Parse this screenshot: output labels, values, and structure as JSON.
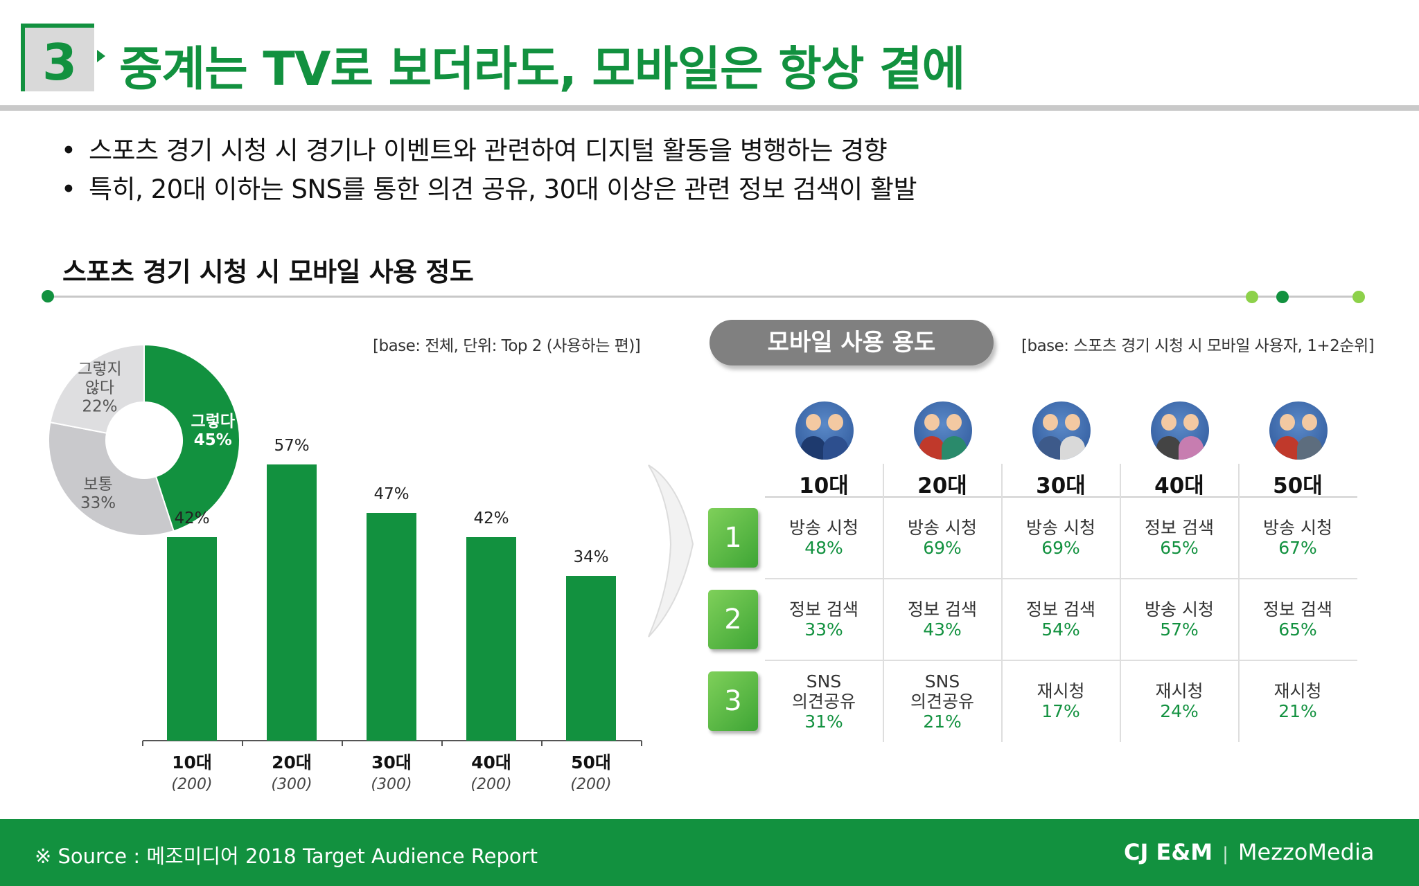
{
  "header": {
    "number": "3",
    "title": "중계는 TV로 보더라도, 모바일은 항상 곁에"
  },
  "bullets": [
    "스포츠 경기 시청 시 경기나 이벤트와 관련하여 디지털 활동을 병행하는 경향",
    "특히, 20대 이하는 SNS를 통한 의견 공유, 30대 이상은 관련 정보 검색이 활발"
  ],
  "section_title": "스포츠 경기 시청 시 모바일 사용 정도",
  "left_base_note": "[base: 전체, 단위: Top 2 (사용하는 편)]",
  "right_pill": "모바일 사용 용도",
  "right_base_note": "[base: 스포츠 경기 시청 시 모바일 사용자, 1+2순위]",
  "colors": {
    "green": "#12913f",
    "gray": "#c8c8c8",
    "light_gray": "#dedede",
    "lime": "#8dd14a"
  },
  "chart_data": [
    {
      "type": "pie",
      "slices": [
        {
          "label": "그렇다",
          "value": 45,
          "color": "#12913f"
        },
        {
          "label": "보통",
          "value": 33,
          "color": "#c9c9cc"
        },
        {
          "label": "그렇지 않다",
          "value": 22,
          "color": "#dedee0"
        }
      ],
      "slice_text": [
        {
          "label_lines": [
            "그렇다"
          ],
          "pct": "45%"
        },
        {
          "label_lines": [
            "보통"
          ],
          "pct": "33%"
        },
        {
          "label_lines": [
            "그렇지",
            "않다"
          ],
          "pct": "22%"
        }
      ]
    },
    {
      "type": "bar",
      "categories": [
        "10대",
        "20대",
        "30대",
        "40대",
        "50대"
      ],
      "sample_sizes": [
        "(200)",
        "(300)",
        "(300)",
        "(200)",
        "(200)"
      ],
      "values": [
        42,
        57,
        47,
        42,
        34
      ],
      "value_labels": [
        "42%",
        "57%",
        "47%",
        "42%",
        "34%"
      ],
      "ylim": [
        0,
        60
      ],
      "color": "#12913f"
    },
    {
      "type": "table",
      "columns": [
        "10대",
        "20대",
        "30대",
        "40대",
        "50대"
      ],
      "ranks": [
        "1",
        "2",
        "3"
      ],
      "rows": [
        [
          {
            "label": "방송 시청",
            "value": "48%"
          },
          {
            "label": "방송 시청",
            "value": "69%"
          },
          {
            "label": "방송 시청",
            "value": "69%"
          },
          {
            "label": "정보 검색",
            "value": "65%"
          },
          {
            "label": "방송 시청",
            "value": "67%"
          }
        ],
        [
          {
            "label": "정보 검색",
            "value": "33%"
          },
          {
            "label": "정보 검색",
            "value": "43%"
          },
          {
            "label": "정보 검색",
            "value": "54%"
          },
          {
            "label": "방송 시청",
            "value": "57%"
          },
          {
            "label": "정보 검색",
            "value": "65%"
          }
        ],
        [
          {
            "label": "SNS 의견공유",
            "value": "31%"
          },
          {
            "label": "SNS 의견공유",
            "value": "21%"
          },
          {
            "label": "재시청",
            "value": "17%"
          },
          {
            "label": "재시청",
            "value": "24%"
          },
          {
            "label": "재시청",
            "value": "21%"
          }
        ]
      ]
    }
  ],
  "avatars": [
    "group-10s-icon",
    "group-20s-icon",
    "group-30s-icon",
    "group-40s-icon",
    "group-50s-icon"
  ],
  "footer": {
    "source": "※ Source : 메조미디어 2018 Target Audience Report",
    "logo_cj": "CJ E&M",
    "logo_sep": "|",
    "logo_mezzo": "MezzoMedia"
  }
}
